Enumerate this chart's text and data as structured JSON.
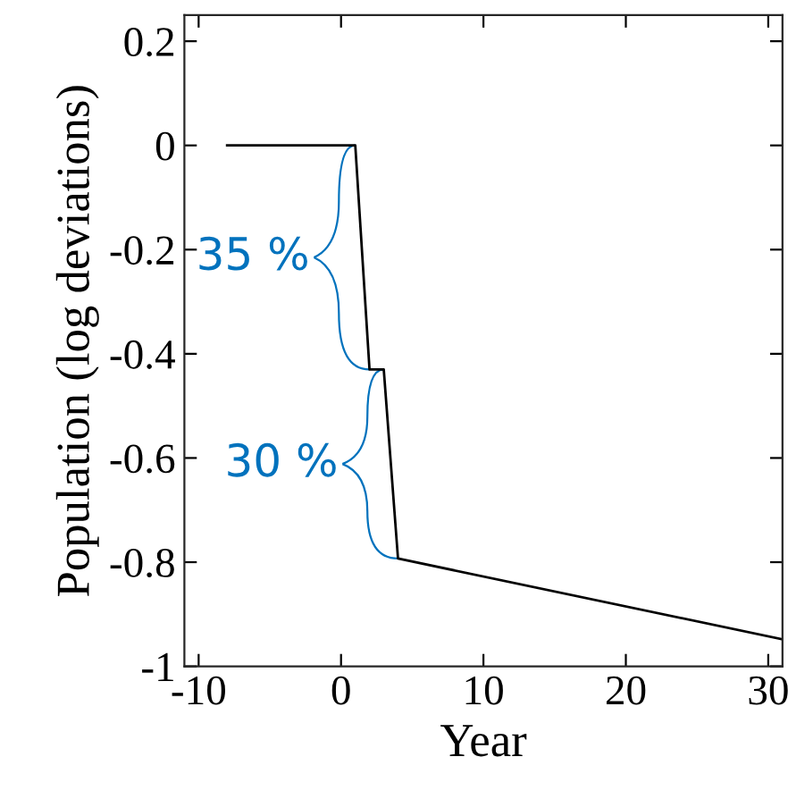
{
  "chart_data": {
    "type": "line",
    "xlabel": "Year",
    "ylabel": "Population (log deviations)",
    "x": [
      -8,
      1,
      2,
      3,
      4,
      31
    ],
    "series": [
      {
        "color": "#000000",
        "values": [
          0,
          0,
          -0.43,
          -0.43,
          -0.793,
          -0.948
        ]
      }
    ],
    "xlim": [
      -11,
      31
    ],
    "ylim": [
      -1,
      0.25
    ],
    "xticks": [
      -10,
      0,
      10,
      20,
      30
    ],
    "yticks": [
      {
        "value": -1,
        "label": "-1"
      },
      {
        "value": -0.8,
        "label": "-0.8"
      },
      {
        "value": -0.6,
        "label": "-0.6"
      },
      {
        "value": -0.4,
        "label": "-0.4"
      },
      {
        "value": -0.2,
        "label": "-0.2"
      },
      0,
      0.2
    ],
    "annotations": [
      {
        "text": "35 %",
        "x": 2,
        "y": -0.43
      },
      {
        "text": "30 %",
        "x": 4,
        "y": -0.793
      }
    ],
    "grid": false,
    "legend": false,
    "marker": "none",
    "line_style": "solid"
  }
}
